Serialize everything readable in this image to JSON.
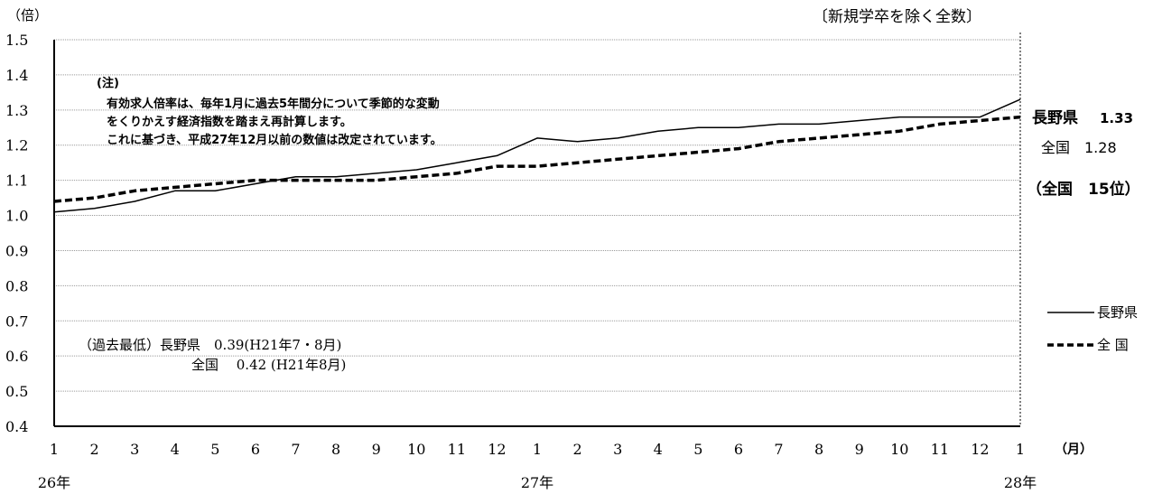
{
  "chart_data": {
    "type": "line",
    "ylabel": "（倍）",
    "xunit": "（月）",
    "note_top_right": "〔新規学卒を除く全数〕",
    "ylim": [
      0.4,
      1.5
    ],
    "yticks": [
      "1.5",
      "1.4",
      "1.3",
      "1.2",
      "1.1",
      "1.0",
      "0.9",
      "0.8",
      "0.7",
      "0.6",
      "0.5",
      "0.4"
    ],
    "categories": [
      "1",
      "2",
      "3",
      "4",
      "5",
      "6",
      "7",
      "8",
      "9",
      "10",
      "11",
      "12",
      "1",
      "2",
      "3",
      "4",
      "5",
      "6",
      "7",
      "8",
      "9",
      "10",
      "11",
      "12",
      "1"
    ],
    "year_labels": [
      {
        "label": "26年",
        "index": 0
      },
      {
        "label": "27年",
        "index": 12
      },
      {
        "label": "28年",
        "index": 24
      }
    ],
    "series": [
      {
        "name": "長野県",
        "style": "solid",
        "values": [
          1.01,
          1.02,
          1.04,
          1.07,
          1.07,
          1.09,
          1.11,
          1.11,
          1.12,
          1.13,
          1.15,
          1.17,
          1.22,
          1.21,
          1.22,
          1.24,
          1.25,
          1.25,
          1.26,
          1.26,
          1.27,
          1.28,
          1.28,
          1.28,
          1.33
        ]
      },
      {
        "name": "全 国",
        "style": "dashed",
        "values": [
          1.04,
          1.05,
          1.07,
          1.08,
          1.09,
          1.1,
          1.1,
          1.1,
          1.1,
          1.11,
          1.12,
          1.14,
          1.14,
          1.15,
          1.16,
          1.17,
          1.18,
          1.19,
          1.21,
          1.22,
          1.23,
          1.24,
          1.26,
          1.27,
          1.28
        ]
      }
    ],
    "grid": true,
    "legend": [
      {
        "label": "長野県",
        "style": "solid"
      },
      {
        "label": "全 国",
        "style": "dashed"
      }
    ]
  },
  "annotations": {
    "note_title": "(注)",
    "note_lines": [
      "有効求人倍率は、毎年1月に過去5年間分について季節的な変動",
      "をくりかえす経済指数を踏まえ再計算します。",
      "これに基づき、平成27年12月以前の数値は改定されています。"
    ],
    "latest_nagano_label": "長野県",
    "latest_nagano_value": "1.33",
    "latest_national": "全国　1.28",
    "rank": "（全国　15位）",
    "record_low_line1": "（過去最低）長野県　0.39(H21年7・8月)",
    "record_low_line2": "全国　 0.42 (H21年8月)"
  }
}
